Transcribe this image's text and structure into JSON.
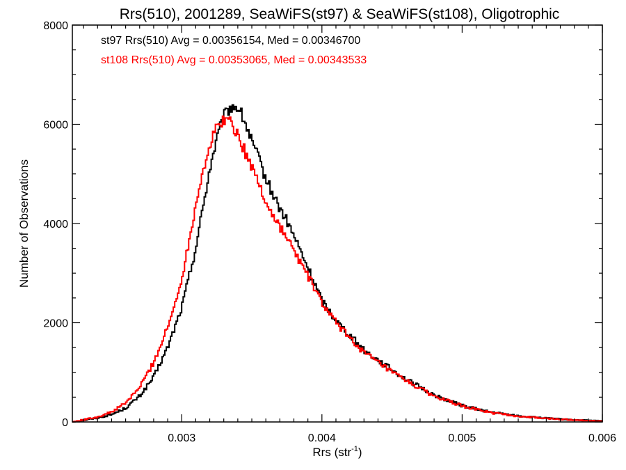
{
  "chart_data": {
    "type": "line",
    "title": "Rrs(510), 2001289, SeaWiFS(st97) & SeaWiFS(st108), Oligotrophic",
    "xlabel_main": "Rrs (str",
    "xlabel_sup": "-1",
    "xlabel_tail": ")",
    "ylabel": "Number of Observations",
    "xlim": [
      0.00222,
      0.006
    ],
    "ylim": [
      0,
      8000
    ],
    "x_ticks": [
      0.003,
      0.004,
      0.005,
      0.006
    ],
    "x_tick_labels": [
      "0.003",
      "0.004",
      "0.005",
      "0.006"
    ],
    "y_ticks": [
      0,
      2000,
      4000,
      6000,
      8000
    ],
    "y_tick_labels": [
      "0",
      "2000",
      "4000",
      "6000",
      "8000"
    ],
    "grid": false,
    "series": [
      {
        "annotation": "st97 Rrs(510) Avg = 0.00356154, Med = 0.00346700",
        "color": "#000000",
        "x": [
          0.00222,
          0.0024,
          0.0025,
          0.0026,
          0.0027,
          0.0028,
          0.0029,
          0.003,
          0.00305,
          0.0031,
          0.00315,
          0.0032,
          0.00325,
          0.0033,
          0.00335,
          0.0034,
          0.00345,
          0.0035,
          0.00355,
          0.0036,
          0.00365,
          0.0037,
          0.00375,
          0.0038,
          0.0039,
          0.004,
          0.0041,
          0.0042,
          0.0043,
          0.0044,
          0.0045,
          0.0046,
          0.0048,
          0.005,
          0.0052,
          0.0054,
          0.0056,
          0.0058,
          0.006
        ],
        "values": [
          0,
          80,
          150,
          280,
          520,
          900,
          1500,
          2300,
          2900,
          3500,
          4300,
          5100,
          5700,
          6150,
          6350,
          6350,
          6050,
          5650,
          5300,
          4900,
          4600,
          4300,
          4050,
          3750,
          3100,
          2450,
          2050,
          1750,
          1450,
          1250,
          1050,
          860,
          540,
          330,
          200,
          120,
          75,
          40,
          20
        ]
      },
      {
        "annotation": "st108 Rrs(510) Avg = 0.00353065, Med = 0.00343533",
        "color": "#ff0000",
        "x": [
          0.00222,
          0.0024,
          0.0025,
          0.0026,
          0.0027,
          0.0028,
          0.0029,
          0.00295,
          0.003,
          0.00305,
          0.0031,
          0.00315,
          0.0032,
          0.00325,
          0.0033,
          0.00335,
          0.0034,
          0.00345,
          0.0035,
          0.00355,
          0.0036,
          0.00365,
          0.0037,
          0.00375,
          0.0038,
          0.0039,
          0.004,
          0.0041,
          0.0042,
          0.0043,
          0.0044,
          0.0045,
          0.0046,
          0.0048,
          0.005,
          0.0052,
          0.0054,
          0.0056,
          0.0058,
          0.006
        ],
        "values": [
          0,
          100,
          200,
          380,
          700,
          1200,
          1900,
          2350,
          2900,
          3600,
          4400,
          5050,
          5550,
          5950,
          6100,
          6050,
          5800,
          5450,
          5150,
          4800,
          4450,
          4150,
          3950,
          3700,
          3450,
          2950,
          2400,
          2000,
          1700,
          1400,
          1200,
          1000,
          830,
          520,
          320,
          190,
          115,
          70,
          40,
          15
        ]
      }
    ]
  }
}
